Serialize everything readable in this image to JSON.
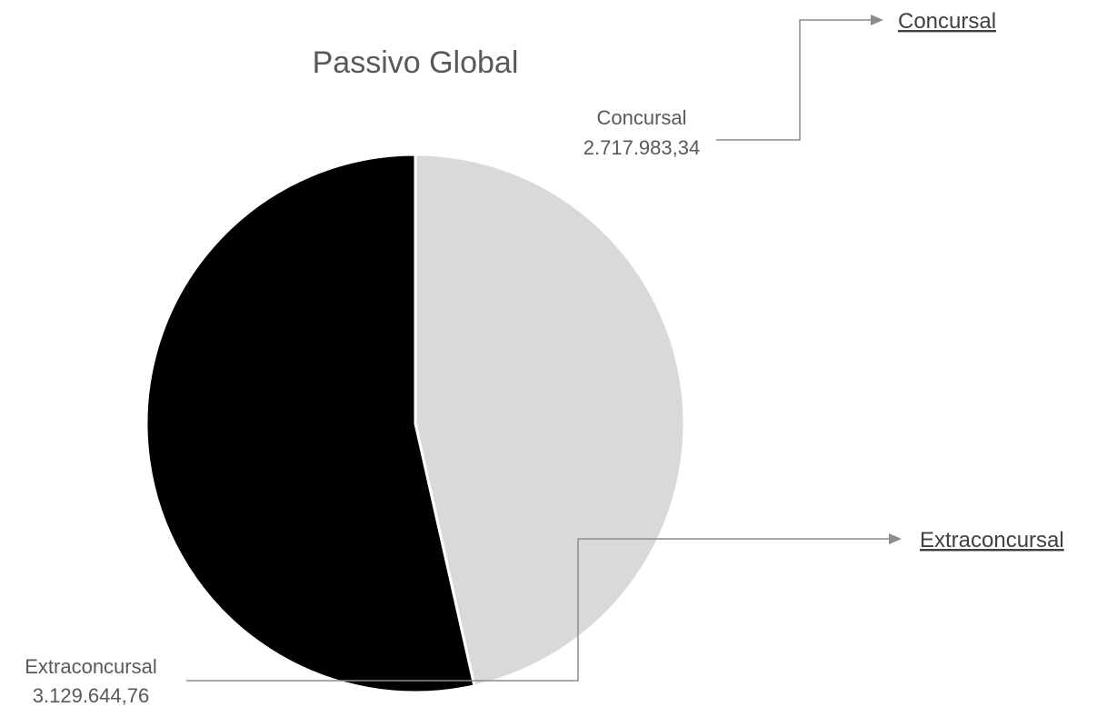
{
  "chart_data": {
    "type": "pie",
    "title": "Passivo Global",
    "categories": [
      "Concursal",
      "Extraconcursal"
    ],
    "values": [
      2717983.34,
      3129644.76
    ],
    "value_labels": [
      "2.717.983,34",
      "3.129.644,76"
    ],
    "colors": {
      "Concursal": "#d9d9d9",
      "Extraconcursal": "#000000"
    },
    "start_angle": "12 o'clock",
    "direction": "clockwise",
    "legend": "none"
  },
  "links": [
    {
      "label": "Concursal"
    },
    {
      "label": "Extraconcursal"
    }
  ]
}
